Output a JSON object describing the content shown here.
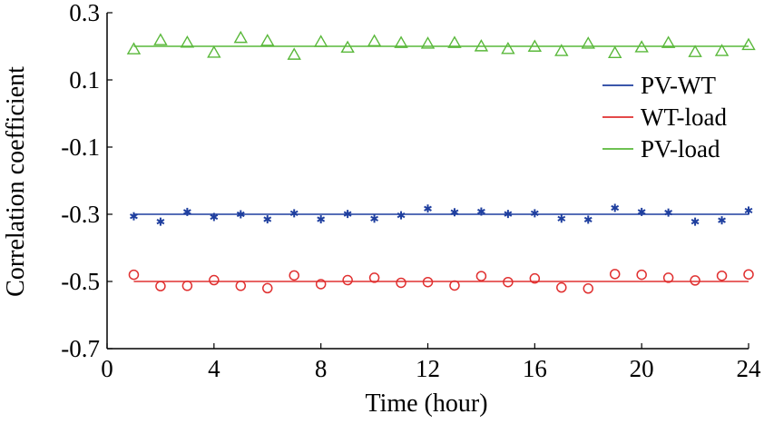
{
  "chart_data": {
    "type": "scatter",
    "xlabel": "Time (hour)",
    "ylabel": "Correlation coefficient",
    "xlim": [
      0,
      24
    ],
    "ylim": [
      -0.7,
      0.3
    ],
    "xticks": [
      0,
      4,
      8,
      12,
      16,
      20,
      24
    ],
    "xtick_labels": [
      "0",
      "4",
      "8",
      "12",
      "16",
      "20",
      "24"
    ],
    "yticks": [
      0.3,
      0.1,
      -0.1,
      -0.3,
      -0.5,
      -0.7
    ],
    "ytick_labels": [
      "0.3",
      "0.1",
      "-0.1",
      "-0.3",
      "-0.5",
      "-0.7"
    ],
    "grid": false,
    "legend_position": "right",
    "x": [
      1,
      2,
      3,
      4,
      5,
      6,
      7,
      8,
      9,
      10,
      11,
      12,
      13,
      14,
      15,
      16,
      17,
      18,
      19,
      20,
      21,
      22,
      23,
      24
    ],
    "series": [
      {
        "name": "PV-WT",
        "color": "#1f3f9f",
        "marker": "asterisk",
        "fit_value": -0.3,
        "values": [
          -0.306,
          -0.322,
          -0.293,
          -0.308,
          -0.3,
          -0.315,
          -0.297,
          -0.315,
          -0.299,
          -0.313,
          -0.303,
          -0.283,
          -0.294,
          -0.292,
          -0.299,
          -0.297,
          -0.313,
          -0.316,
          -0.281,
          -0.293,
          -0.295,
          -0.322,
          -0.318,
          -0.289
        ]
      },
      {
        "name": "WT-load",
        "color": "#e03030",
        "marker": "circle",
        "fit_value": -0.5,
        "values": [
          -0.48,
          -0.514,
          -0.513,
          -0.496,
          -0.513,
          -0.52,
          -0.482,
          -0.508,
          -0.496,
          -0.489,
          -0.504,
          -0.502,
          -0.512,
          -0.484,
          -0.502,
          -0.491,
          -0.518,
          -0.521,
          -0.478,
          -0.48,
          -0.489,
          -0.497,
          -0.483,
          -0.479
        ]
      },
      {
        "name": "PV-load",
        "color": "#59b83a",
        "marker": "triangle",
        "fit_value": 0.2,
        "values": [
          0.191,
          0.218,
          0.211,
          0.181,
          0.225,
          0.216,
          0.175,
          0.213,
          0.196,
          0.215,
          0.21,
          0.208,
          0.21,
          0.2,
          0.192,
          0.199,
          0.186,
          0.208,
          0.18,
          0.197,
          0.21,
          0.183,
          0.186,
          0.204
        ]
      }
    ]
  }
}
